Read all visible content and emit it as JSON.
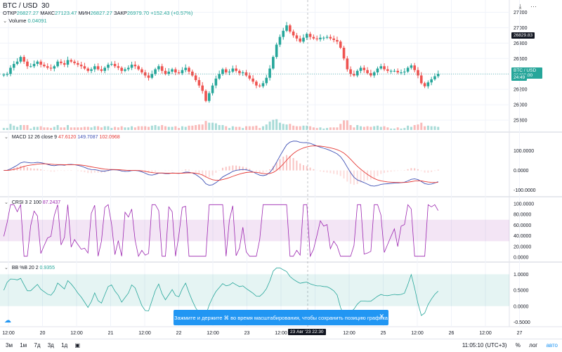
{
  "header": {
    "symbol": "BTC / USD",
    "interval": "30",
    "open_label": "ОТКР",
    "open": "26827.27",
    "high_label": "МАКС",
    "high": "27123.47",
    "low_label": "МИН",
    "low": "26827.27",
    "close_label": "ЗАКР",
    "close": "26979.70",
    "change": "+152.43 (+0.57%)",
    "volume_label": "Volume",
    "volume_value": "0.04091"
  },
  "panes": {
    "macd": {
      "label": "MACD",
      "params": "12 26 close 9",
      "v1": "47.6120",
      "v2": "149.7087",
      "v3": "102.0968"
    },
    "crsi": {
      "label": "CRSI",
      "params": "3 2 100",
      "v1": "87.2437"
    },
    "bb": {
      "label": "BB %B",
      "params": "20 2",
      "v1": "0.9355"
    }
  },
  "price_tags": {
    "current_label": "BTC / USD",
    "current": "26400.00",
    "countdown": "24:49",
    "crosshair": "26829.83"
  },
  "crosshair_time": "23 Авг '23   22:30",
  "toast": {
    "text": "Зажмите и держите ⌘ во время масштабирования, чтобы сохранить позицию графика",
    "close": "✕"
  },
  "bottom_bar": {
    "ranges": [
      "3м",
      "1м",
      "7д",
      "3д",
      "1д"
    ],
    "time": "11:05:10 (UTC+3)",
    "pct": "%",
    "log": "лог",
    "auto": "авто"
  },
  "colors": {
    "up": "#26a69a",
    "down": "#ef5350",
    "macd": "#e53935",
    "signal": "#3f51b5",
    "crsi": "#9c27b0",
    "bb": "#26a69a",
    "accent": "#2196f3"
  },
  "chart_data": [
    {
      "type": "candlestick",
      "title": "BTC / USD",
      "x_ticks": [
        "12:00",
        "20",
        "12:00",
        "21",
        "12:00",
        "22",
        "12:00",
        "23",
        "12:00",
        "24",
        "12:00",
        "25",
        "12:00",
        "26",
        "12:00",
        "27"
      ],
      "y_ticks": [
        25800,
        26000,
        26200,
        26400,
        26600,
        26800,
        27000,
        27200
      ],
      "ylim": [
        25700,
        27250
      ],
      "close": [
        26390,
        26400,
        26480,
        26530,
        26560,
        26620,
        26560,
        26500,
        26500,
        26530,
        26560,
        26520,
        26500,
        26480,
        26470,
        26500,
        26560,
        26540,
        26520,
        26580,
        26560,
        26540,
        26520,
        26500,
        26470,
        26440,
        26460,
        26500,
        26460,
        26440,
        26480,
        26520,
        26530,
        26500,
        26480,
        26440,
        26460,
        26480,
        26520,
        26500,
        26460,
        26420,
        26380,
        26350,
        26400,
        26460,
        26500,
        26440,
        26400,
        26430,
        26460,
        26420,
        26410,
        26450,
        26480,
        26430,
        26380,
        26320,
        26250,
        26180,
        26050,
        26150,
        26250,
        26340,
        26400,
        26460,
        26420,
        26430,
        26470,
        26440,
        26410,
        26420,
        26380,
        26340,
        26300,
        26250,
        26240,
        26280,
        26350,
        26470,
        26620,
        26780,
        26880,
        26960,
        27030,
        26950,
        26900,
        26860,
        26820,
        26870,
        26920,
        26880,
        26860,
        26850,
        26870,
        26870,
        26880,
        26860,
        26840,
        26820,
        26740,
        26600,
        26460,
        26400,
        26380,
        26440,
        26480,
        26450,
        26410,
        26380,
        26420,
        26470,
        26500,
        26460,
        26440,
        26440,
        26440,
        26420,
        26420,
        26430,
        26480,
        26510,
        26450,
        26380,
        26280,
        26240,
        26290,
        26330,
        26370,
        26400
      ]
    },
    {
      "type": "line",
      "title": "MACD 12 26 close 9",
      "y_ticks": [
        100,
        0,
        -100
      ],
      "ylim": [
        -120,
        160
      ]
    },
    {
      "type": "line",
      "title": "CRSI 3 2 100",
      "y_ticks": [
        100,
        80,
        60,
        40,
        20,
        0
      ],
      "ylim": [
        -5,
        105
      ],
      "band": [
        30,
        70
      ]
    },
    {
      "type": "line",
      "title": "BB %B 20 2",
      "y_ticks": [
        1.0,
        0.5,
        0.0,
        -0.5
      ],
      "ylim": [
        -0.6,
        1.25
      ],
      "band": [
        0,
        1
      ]
    }
  ]
}
